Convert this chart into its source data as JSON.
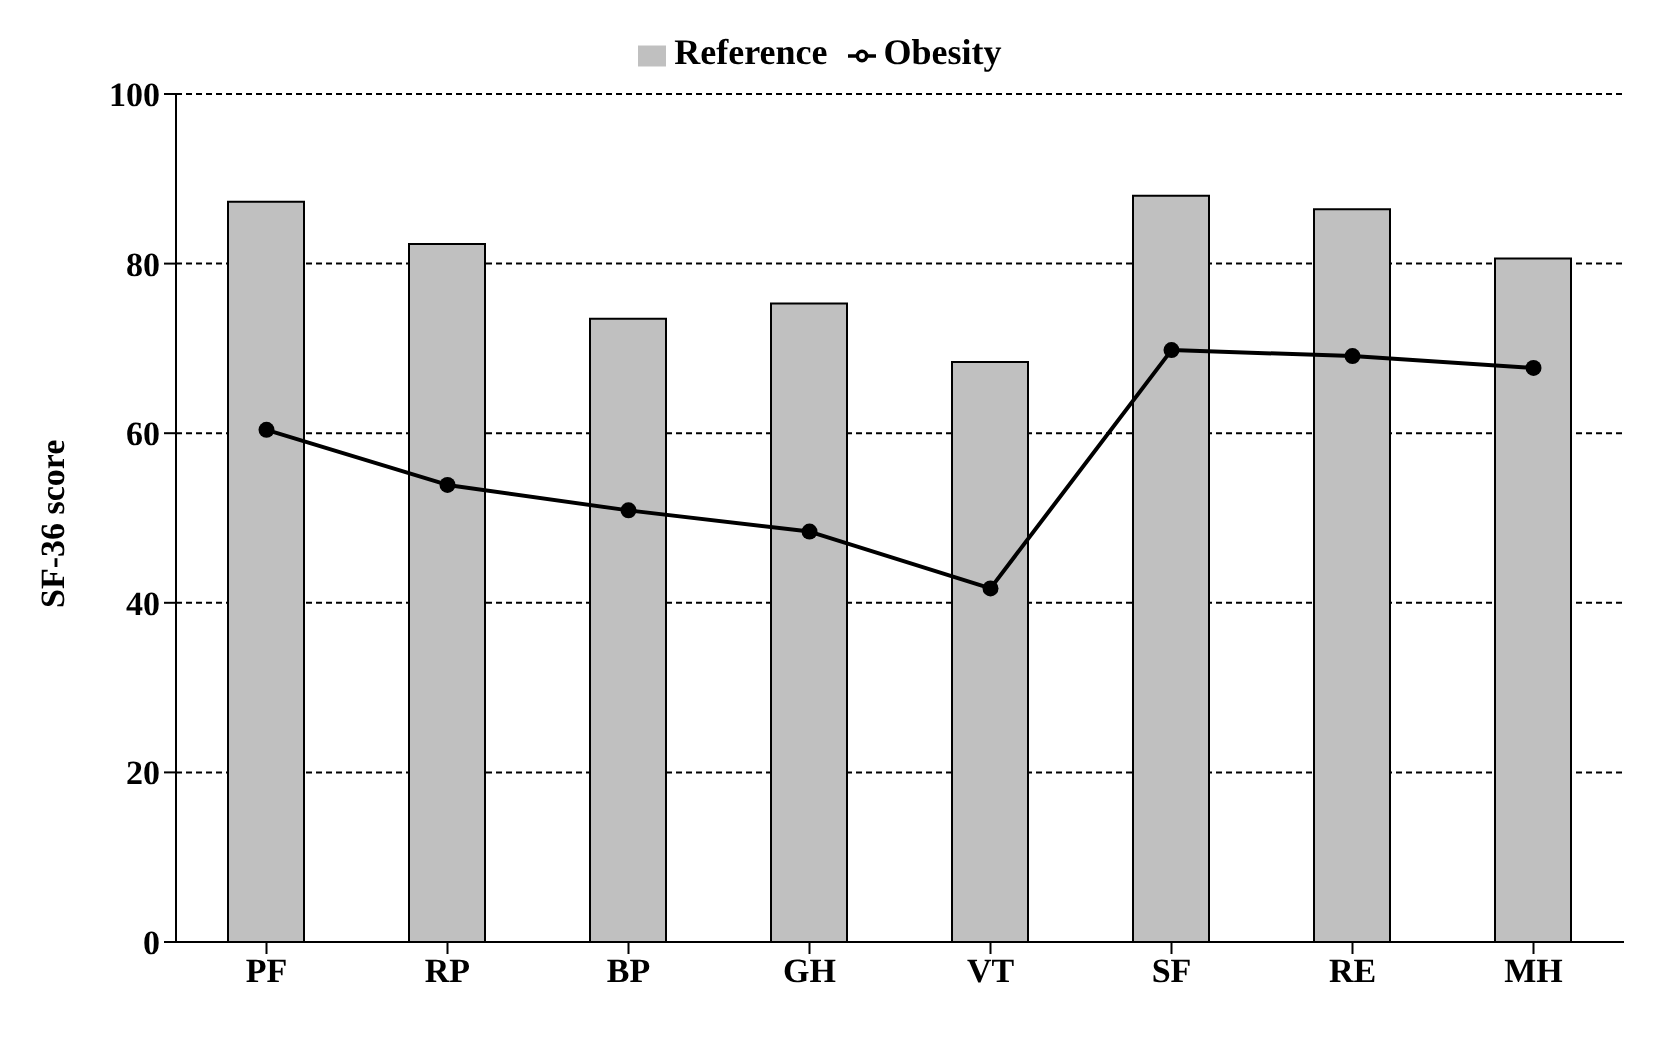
{
  "chart_data": {
    "type": "bar",
    "ylabel": "SF-36 score",
    "categories": [
      "PF",
      "RP",
      "BP",
      "GH",
      "VT",
      "SF",
      "RE",
      "MH"
    ],
    "series": [
      {
        "name": "Reference",
        "color": "#c0c0c0",
        "values": [
          87.3,
          82.3,
          73.5,
          75.3,
          68.4,
          88.0,
          86.4,
          80.6
        ]
      },
      {
        "name": "Obesity",
        "type": "line",
        "color": "#000000",
        "values": [
          60.4,
          53.9,
          50.9,
          48.4,
          41.7,
          69.8,
          69.1,
          67.7
        ]
      }
    ],
    "ylim": [
      0,
      100
    ],
    "yticks": [
      0,
      20,
      40,
      60,
      80,
      100
    ],
    "grid": "y",
    "legend": "top",
    "marker": "circle"
  }
}
